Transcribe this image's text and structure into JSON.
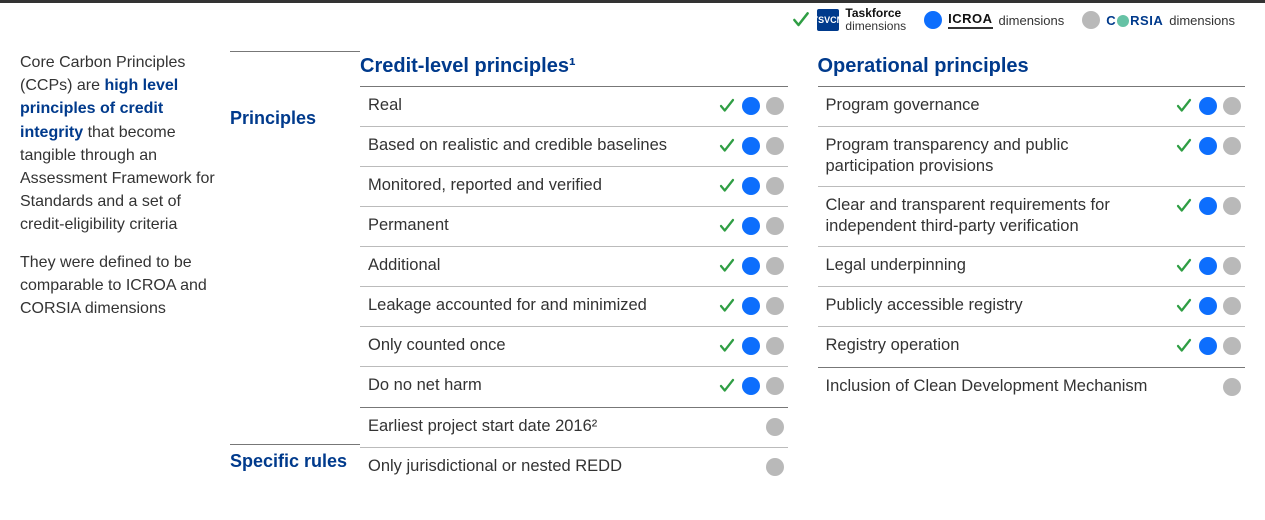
{
  "colors": {
    "navy": "#003a8c",
    "green": "#2f9e44",
    "blue_dot": "#0d6efd",
    "grey_dot": "#b9b9b9",
    "text": "#333333",
    "rule": "#bbbbbb"
  },
  "legend": {
    "taskforce": {
      "badge": "TSVCM",
      "line1": "Taskforce",
      "line2": "dimensions"
    },
    "icroa": {
      "wordmark": "ICROA",
      "label": "dimensions"
    },
    "corsia": {
      "wordmark_prefix": "C",
      "wordmark_suffix": "RSIA",
      "label": "dimensions",
      "dot_color": "#66c2a5"
    }
  },
  "sidebar": {
    "para1_pre": "Core Carbon Principles (CCPs) are ",
    "para1_emph": "high level principles of credit integrity",
    "para1_post": " that become tangible through an Assessment Framework for Standards and a set of credit-eligibility criteria",
    "para2": "They were defined to be comparable to ICROA and CORSIA dimensions"
  },
  "row_labels": {
    "principles": "Principles",
    "rules": "Specific rules"
  },
  "left_column": {
    "header": "Credit-level principles¹",
    "principles": [
      {
        "label": "Real",
        "check": true,
        "blue": true,
        "grey": true
      },
      {
        "label": "Based on realistic and credible baselines",
        "check": true,
        "blue": true,
        "grey": true
      },
      {
        "label": "Monitored, reported and verified",
        "check": true,
        "blue": true,
        "grey": true
      },
      {
        "label": "Permanent",
        "check": true,
        "blue": true,
        "grey": true
      },
      {
        "label": "Additional",
        "check": true,
        "blue": true,
        "grey": true
      },
      {
        "label": "Leakage accounted for and minimized",
        "check": true,
        "blue": true,
        "grey": true
      },
      {
        "label": "Only counted once",
        "check": true,
        "blue": true,
        "grey": true
      },
      {
        "label": "Do no net harm",
        "check": true,
        "blue": true,
        "grey": true
      }
    ],
    "rules": [
      {
        "label": "Earliest project start date 2016²",
        "check": false,
        "blue": false,
        "grey": true
      },
      {
        "label": "Only jurisdictional or nested REDD",
        "check": false,
        "blue": false,
        "grey": true
      }
    ]
  },
  "right_column": {
    "header": "Operational principles",
    "principles": [
      {
        "label": "Program governance",
        "check": true,
        "blue": true,
        "grey": true
      },
      {
        "label": "Program transparency and public participation provisions",
        "check": true,
        "blue": true,
        "grey": true
      },
      {
        "label": "Clear and transparent requirements for independent third-party verification",
        "check": true,
        "blue": true,
        "grey": true
      },
      {
        "label": "Legal underpinning",
        "check": true,
        "blue": true,
        "grey": true
      },
      {
        "label": "Publicly accessible registry",
        "check": true,
        "blue": true,
        "grey": true
      },
      {
        "label": "Registry operation",
        "check": true,
        "blue": true,
        "grey": true
      }
    ],
    "rules": [
      {
        "label": "Inclusion of Clean Development Mechanism",
        "check": false,
        "blue": false,
        "grey": true
      }
    ]
  }
}
